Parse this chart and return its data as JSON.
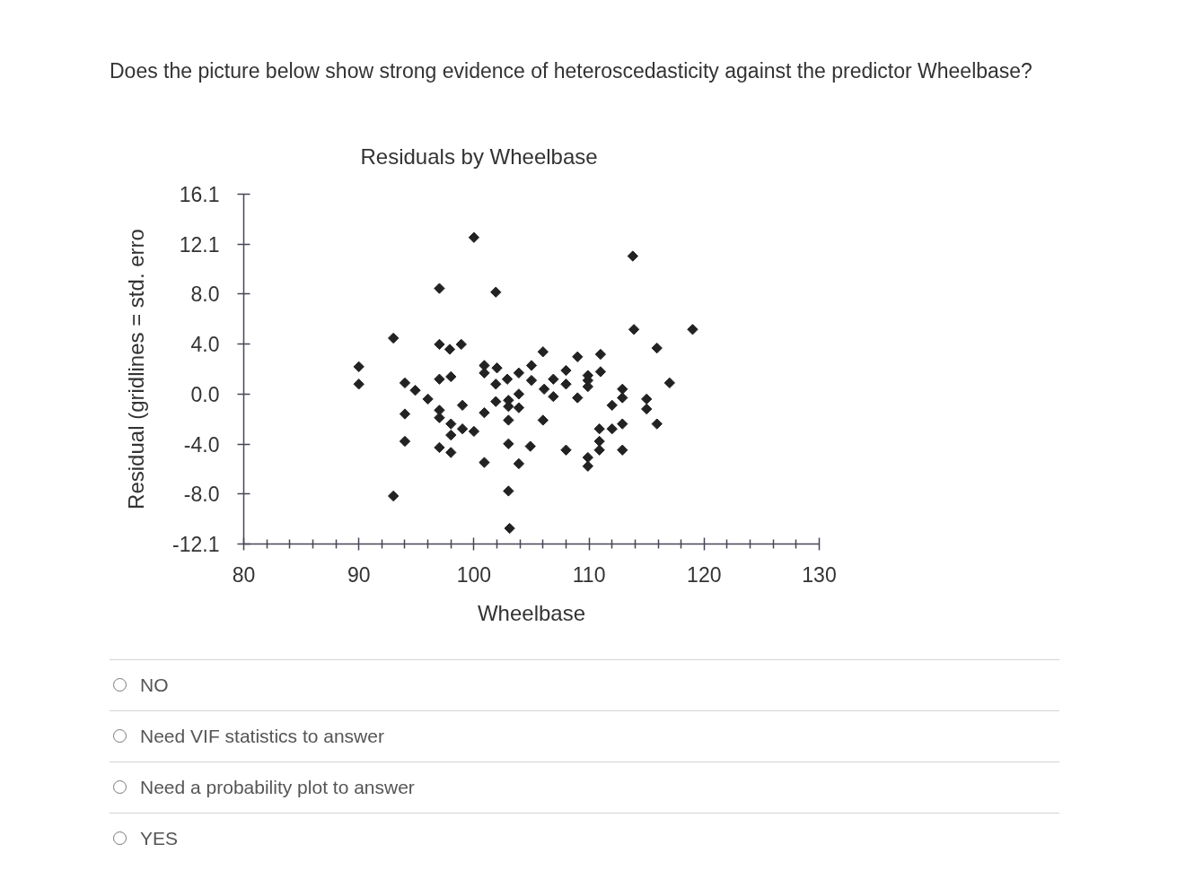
{
  "chart_data": {
    "type": "scatter",
    "title": "Residuals by Wheelbase",
    "xlabel": "Wheelbase",
    "ylabel": "Residual (gridlines = std. erro",
    "annotations": [
      "Does the picture below show strong evidence of heteroscedasticity against the predictor Wheelbase?",
      "NO",
      "Need VIF statistics to answer",
      "Need a probability plot to answer",
      "YES"
    ],
    "x": [
      100.0,
      97.0,
      101.9,
      113.8,
      113.9,
      119.0,
      93.0,
      115.9,
      117.0,
      93.0,
      103.0,
      103.1,
      90.0,
      90.0,
      97.0,
      97.9,
      98.9,
      100.9,
      100.9,
      102.0,
      97.0,
      98.0,
      94.0,
      102.9,
      101.9,
      94.9,
      96.0,
      94.0,
      97.0,
      97.0,
      99.0,
      100.9,
      98.0,
      99.0,
      100.0,
      98.0,
      94.0,
      97.0,
      98.0,
      100.9,
      101.9,
      103.0,
      103.0,
      103.0,
      103.0,
      103.9,
      103.9,
      103.9,
      105.0,
      105.0,
      106.0,
      106.9,
      108.0,
      108.0,
      109.0,
      111.0,
      111.0,
      109.9,
      109.9,
      109.9,
      106.1,
      106.9,
      109.0,
      112.9,
      112.9,
      115.0,
      115.0,
      112.0,
      106.0,
      112.9,
      110.9,
      112.0,
      115.9,
      104.9,
      108.0,
      110.9,
      110.9,
      112.9,
      109.9,
      109.9,
      103.9
    ],
    "values": [
      12.6,
      8.5,
      8.2,
      11.1,
      5.2,
      5.2,
      4.5,
      3.7,
      0.9,
      -8.2,
      -7.8,
      -10.8,
      2.2,
      0.8,
      4.0,
      3.6,
      4.0,
      2.3,
      1.7,
      2.1,
      1.2,
      1.4,
      0.9,
      1.2,
      0.8,
      0.3,
      -0.4,
      -1.6,
      -1.3,
      -1.9,
      -0.9,
      -1.5,
      -2.4,
      -2.8,
      -3.0,
      -3.3,
      -3.8,
      -4.3,
      -4.7,
      -5.5,
      -0.6,
      -0.5,
      -1.0,
      -2.1,
      -4.0,
      0.0,
      -1.1,
      1.7,
      1.1,
      2.3,
      3.4,
      1.2,
      1.9,
      0.8,
      3.0,
      3.2,
      1.8,
      1.5,
      1.1,
      0.6,
      0.4,
      -0.2,
      -0.3,
      0.4,
      -0.3,
      -0.4,
      -1.2,
      -0.9,
      -2.1,
      -2.4,
      -2.8,
      -2.8,
      -2.4,
      -4.2,
      -4.5,
      -3.8,
      -4.5,
      -4.5,
      -5.1,
      -5.8,
      -5.6
    ],
    "color": "#222222",
    "marker": "diamond",
    "grid": false,
    "xlim": [
      80,
      130
    ],
    "xticks": [
      80,
      {
        "value": 82,
        "label": null
      },
      {
        "value": 84,
        "label": null
      },
      {
        "value": 86,
        "label": null
      },
      {
        "value": 88,
        "label": null
      },
      90,
      {
        "value": 92,
        "label": null
      },
      {
        "value": 94,
        "label": null
      },
      {
        "value": 96,
        "label": null
      },
      {
        "value": 98,
        "label": null
      },
      100,
      {
        "value": 102,
        "label": null
      },
      {
        "value": 104,
        "label": null
      },
      {
        "value": 106,
        "label": null
      },
      {
        "value": 108,
        "label": null
      },
      110,
      {
        "value": 112,
        "label": null
      },
      {
        "value": 114,
        "label": null
      },
      {
        "value": 116,
        "label": null
      },
      {
        "value": 118,
        "label": null
      },
      120,
      {
        "value": 122,
        "label": null
      },
      {
        "value": 124,
        "label": null
      },
      {
        "value": 126,
        "label": null
      },
      {
        "value": 128,
        "label": null
      },
      130
    ],
    "ylim": [
      -12.06,
      16.08
    ],
    "yticks": [
      {
        "value": -12.06,
        "label": "-12.1"
      },
      {
        "value": -8.04,
        "label": "-8.0"
      },
      {
        "value": -4.02,
        "label": "-4.0"
      },
      {
        "value": 0,
        "label": "0.0"
      },
      {
        "value": 4.02,
        "label": "4.0"
      },
      {
        "value": 8.04,
        "label": "8.0"
      },
      {
        "value": 12.06,
        "label": "12.1"
      },
      {
        "value": 16.08,
        "label": "16.1"
      }
    ]
  }
}
